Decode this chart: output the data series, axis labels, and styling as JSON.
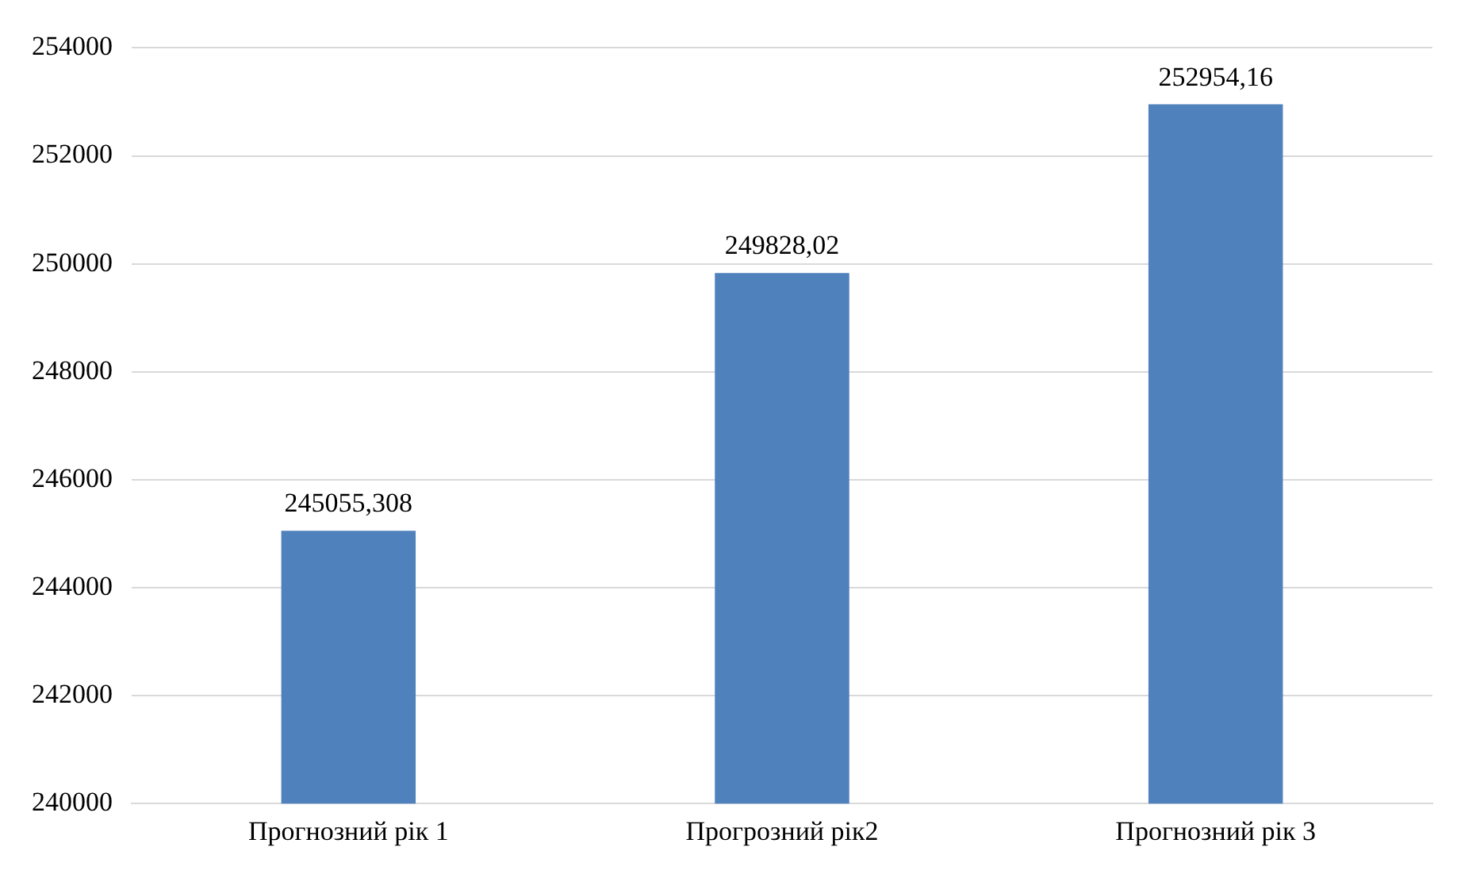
{
  "chart_data": {
    "type": "bar",
    "categories": [
      "Прогнозний рік 1",
      "Прогрозний рік2",
      "Прогнозний рік 3"
    ],
    "values": [
      245055.308,
      249828.02,
      252954.16
    ],
    "value_labels": [
      "245055,308",
      "249828,02",
      "252954,16"
    ],
    "color": "#4f81bd",
    "ylim": [
      240000,
      254000
    ],
    "yticks": [
      240000,
      242000,
      244000,
      246000,
      248000,
      250000,
      252000,
      254000
    ],
    "grid": "y",
    "legend": false
  }
}
